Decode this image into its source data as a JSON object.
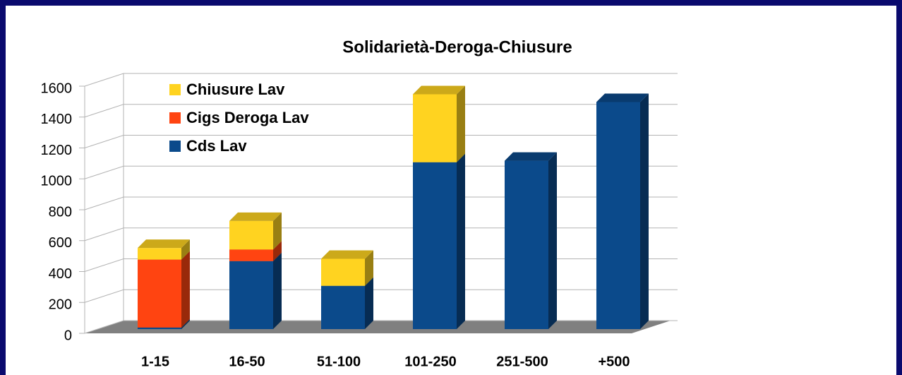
{
  "chart_data": {
    "type": "bar",
    "stacked": true,
    "title": "Solidarietà-Deroga-Chiusure",
    "categories": [
      "1-15",
      "16-50",
      "51-100",
      "101-250",
      "251-500",
      "+500"
    ],
    "series": [
      {
        "name": "Cds Lav",
        "color": "#0b4a8b",
        "values": [
          10,
          440,
          280,
          1080,
          1090,
          1470
        ]
      },
      {
        "name": "Cigs Deroga Lav",
        "color": "#ff4411",
        "values": [
          440,
          75,
          0,
          0,
          0,
          0
        ]
      },
      {
        "name": "Chiusure Lav",
        "color": "#ffd320",
        "values": [
          75,
          185,
          175,
          440,
          0,
          0
        ]
      }
    ],
    "ylim": [
      0,
      1600
    ],
    "yticks": [
      0,
      200,
      400,
      600,
      800,
      1000,
      1200,
      1400,
      1600
    ],
    "grid": true,
    "legend": "top-left"
  }
}
